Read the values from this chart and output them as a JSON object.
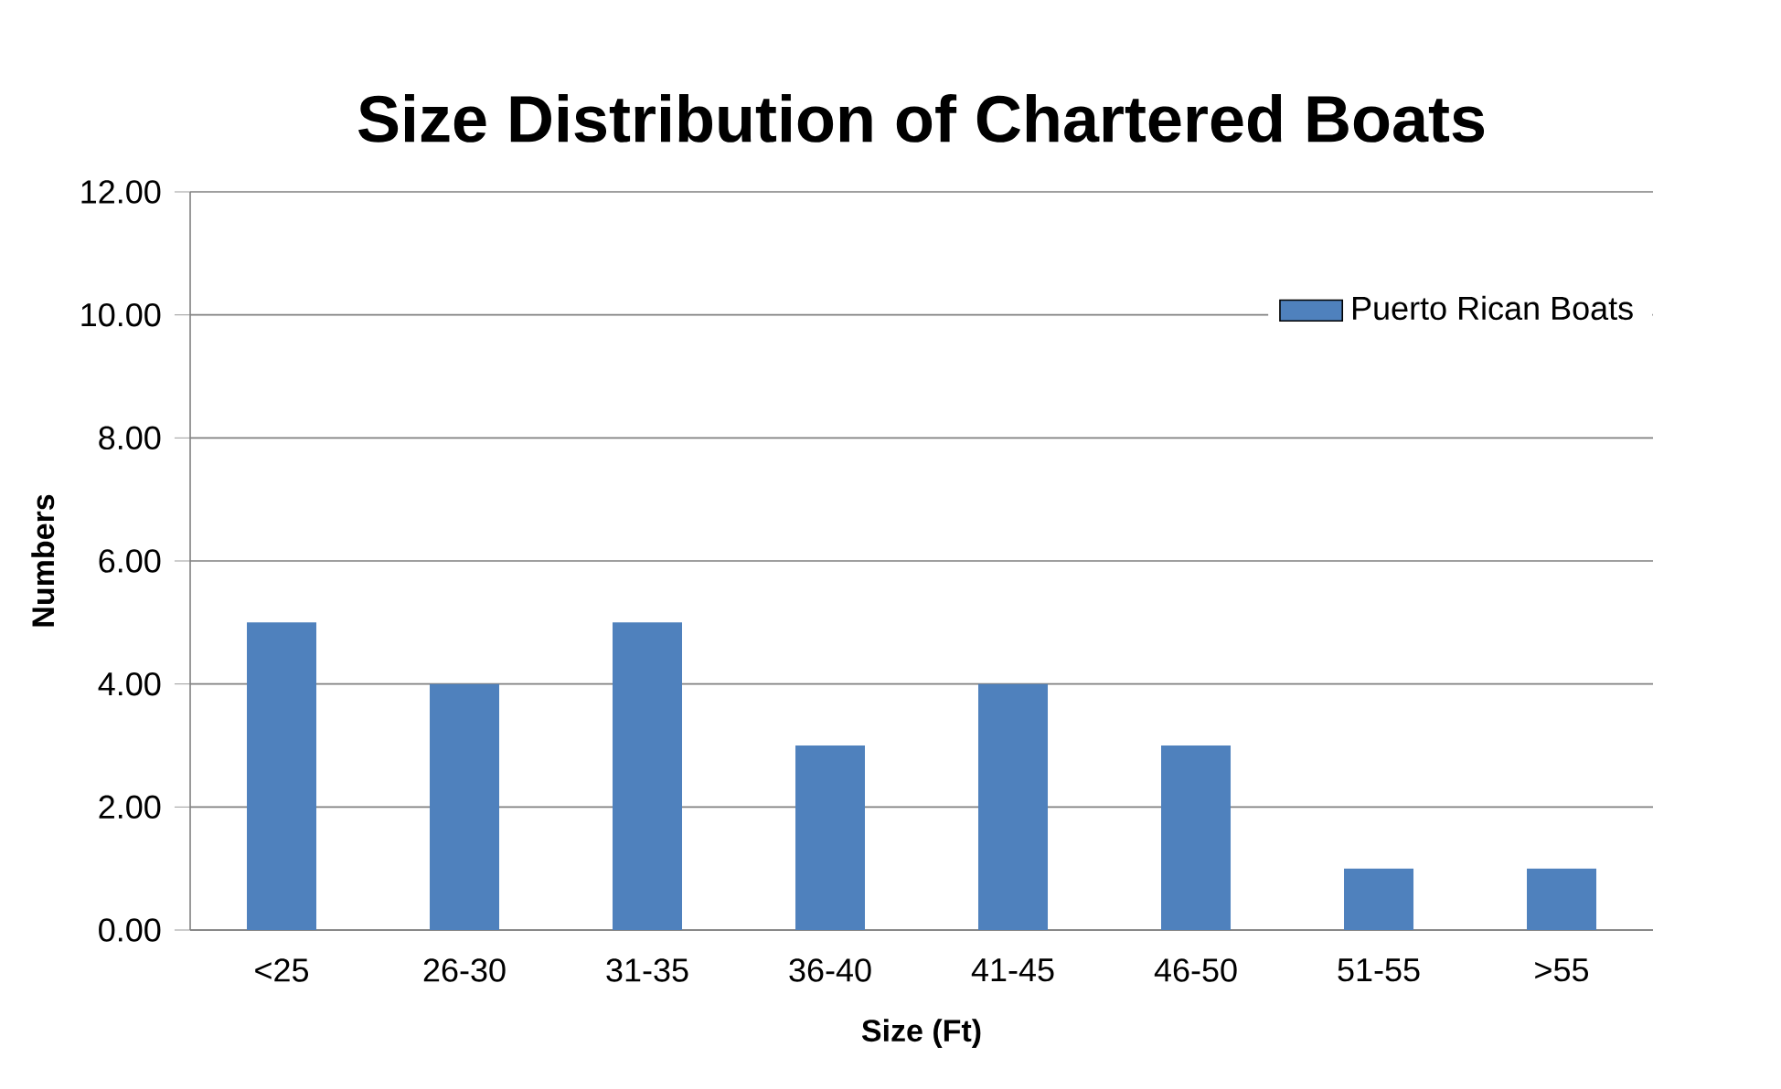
{
  "chart_data": {
    "type": "bar",
    "title": "Size Distribution of Chartered Boats",
    "xlabel": "Size (Ft)",
    "ylabel": "Numbers",
    "categories": [
      "<25",
      "26-30",
      "31-35",
      "36-40",
      "41-45",
      "46-50",
      "51-55",
      ">55"
    ],
    "series": [
      {
        "name": "Puerto Rican Boats",
        "color": "#4f81bd",
        "values": [
          5,
          4,
          5,
          3,
          4,
          3,
          1,
          1
        ]
      }
    ],
    "ylim": [
      0,
      12
    ],
    "yticks": [
      {
        "value": 0,
        "label": "0.00"
      },
      {
        "value": 2,
        "label": "2.00"
      },
      {
        "value": 4,
        "label": "4.00"
      },
      {
        "value": 6,
        "label": "6.00"
      },
      {
        "value": 8,
        "label": "8.00"
      },
      {
        "value": 10,
        "label": "10.00"
      },
      {
        "value": 12,
        "label": "12.00"
      }
    ],
    "grid": "y",
    "legend": "top right"
  }
}
